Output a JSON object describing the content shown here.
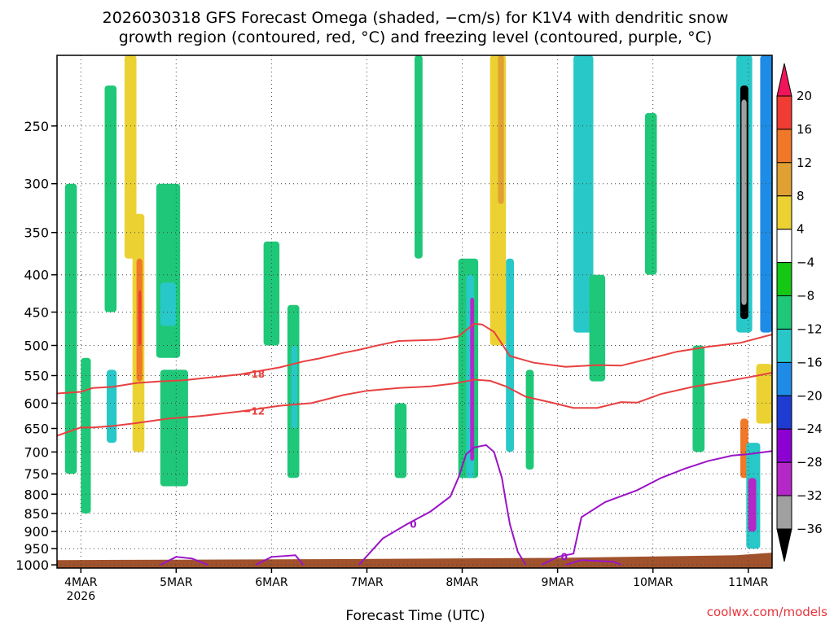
{
  "title": {
    "line1": "2026030318 GFS Forecast Omega (shaded, −cm/s) for K1V4 with dendritic snow",
    "line2": "growth region (contoured, red, °C) and freezing level (contoured, purple, °C)"
  },
  "xlabel": "Forecast Time (UTC)",
  "credit": "coolwx.com/models",
  "chart_data": {
    "type": "heatmap",
    "y_scale": "pressure (inverted, log-like)",
    "y_ticks": [
      "250",
      "300",
      "350",
      "400",
      "450",
      "500",
      "550",
      "600",
      "650",
      "700",
      "750",
      "800",
      "850",
      "900",
      "950",
      "1000"
    ],
    "y_range_hpa": [
      200,
      1010
    ],
    "x_ticks": [
      {
        "label": "4MAR",
        "sub": "2026",
        "hours": 0
      },
      {
        "label": "5MAR",
        "sub": "",
        "hours": 24
      },
      {
        "label": "6MAR",
        "sub": "",
        "hours": 48
      },
      {
        "label": "7MAR",
        "sub": "",
        "hours": 72
      },
      {
        "label": "8MAR",
        "sub": "",
        "hours": 96
      },
      {
        "label": "9MAR",
        "sub": "",
        "hours": 120
      },
      {
        "label": "10MAR",
        "sub": "",
        "hours": 144
      },
      {
        "label": "11MAR",
        "sub": "",
        "hours": 168
      }
    ],
    "x_range_hours": [
      -6,
      174
    ],
    "grid": true,
    "colorbar": {
      "levels": [
        "20",
        "16",
        "12",
        "8",
        "4",
        "−4",
        "−8",
        "−12",
        "−16",
        "−20",
        "−24",
        "−28",
        "−32",
        "−36"
      ],
      "colors": [
        "#f0145a",
        "#f03c32",
        "#f07828",
        "#e1a032",
        "#ebd232",
        "#ffffff",
        "#14c814",
        "#1ec878",
        "#28c8c8",
        "#1e8ce6",
        "#1e3cd2",
        "#8c00d2",
        "#b428c8",
        "#a0a0a0",
        "#000000"
      ]
    },
    "contours": [
      {
        "name": "-18",
        "color": "#e84040",
        "label": "−18",
        "points": [
          [
            -6,
            582
          ],
          [
            0,
            579
          ],
          [
            3,
            572
          ],
          [
            8,
            570
          ],
          [
            14,
            563
          ],
          [
            20,
            560
          ],
          [
            26,
            558
          ],
          [
            30,
            555
          ],
          [
            40,
            548
          ],
          [
            50,
            536
          ],
          [
            56,
            526
          ],
          [
            60,
            521
          ],
          [
            66,
            512
          ],
          [
            70,
            507
          ],
          [
            74,
            501
          ],
          [
            80,
            493
          ],
          [
            85,
            492
          ],
          [
            90,
            491
          ],
          [
            95,
            486
          ],
          [
            99,
            467
          ],
          [
            101,
            468
          ],
          [
            104,
            479
          ],
          [
            108,
            517
          ],
          [
            114,
            528
          ],
          [
            122,
            535
          ],
          [
            130,
            532
          ],
          [
            136,
            533
          ],
          [
            144,
            520
          ],
          [
            150,
            510
          ],
          [
            158,
            502
          ],
          [
            166,
            496
          ],
          [
            174,
            483
          ]
        ]
      },
      {
        "name": "-12",
        "color": "#e84040",
        "label": "−12",
        "points": [
          [
            -6,
            665
          ],
          [
            0,
            648
          ],
          [
            3,
            648
          ],
          [
            8,
            645
          ],
          [
            14,
            639
          ],
          [
            22,
            630
          ],
          [
            30,
            625
          ],
          [
            40,
            616
          ],
          [
            50,
            605
          ],
          [
            58,
            600
          ],
          [
            66,
            585
          ],
          [
            72,
            577
          ],
          [
            80,
            572
          ],
          [
            88,
            569
          ],
          [
            94,
            564
          ],
          [
            99,
            557
          ],
          [
            103,
            559
          ],
          [
            107,
            569
          ],
          [
            112,
            588
          ],
          [
            118,
            598
          ],
          [
            124,
            609
          ],
          [
            130,
            609
          ],
          [
            136,
            598
          ],
          [
            140,
            599
          ],
          [
            146,
            583
          ],
          [
            154,
            570
          ],
          [
            160,
            563
          ],
          [
            168,
            553
          ],
          [
            174,
            545
          ]
        ]
      }
    ],
    "freezing_level": [
      {
        "name": "0C-a",
        "color": "#9a14c8",
        "label": "0",
        "points": [
          [
            70,
            1000
          ],
          [
            76,
            920
          ],
          [
            82,
            880
          ],
          [
            88,
            845
          ],
          [
            93,
            806
          ],
          [
            95,
            760
          ],
          [
            97,
            705
          ],
          [
            99,
            690
          ],
          [
            102,
            685
          ],
          [
            104,
            700
          ],
          [
            106,
            760
          ],
          [
            107,
            820
          ],
          [
            108,
            880
          ],
          [
            110,
            960
          ],
          [
            112,
            1000
          ]
        ]
      },
      {
        "name": "0C-b",
        "color": "#9a14c8",
        "label": "0",
        "points": [
          [
            116,
            1000
          ],
          [
            120,
            975
          ],
          [
            124,
            965
          ],
          [
            126,
            860
          ],
          [
            132,
            820
          ],
          [
            140,
            790
          ],
          [
            146,
            760
          ],
          [
            152,
            738
          ],
          [
            158,
            720
          ],
          [
            164,
            708
          ],
          [
            168,
            705
          ],
          [
            174,
            698
          ]
        ]
      },
      {
        "name": "0C-c",
        "color": "#9a14c8",
        "label": "",
        "points": [
          [
            20,
            1000
          ],
          [
            24,
            975
          ],
          [
            28,
            980
          ],
          [
            32,
            1000
          ]
        ]
      },
      {
        "name": "0C-d",
        "color": "#9a14c8",
        "label": "",
        "points": [
          [
            44,
            1000
          ],
          [
            48,
            975
          ],
          [
            54,
            970
          ],
          [
            56,
            1000
          ]
        ]
      },
      {
        "name": "0C-e",
        "color": "#9a14c8",
        "label": "",
        "points": [
          [
            122,
            1000
          ],
          [
            126,
            985
          ],
          [
            134,
            990
          ],
          [
            136,
            1000
          ]
        ]
      }
    ],
    "omega_patches": [
      {
        "h0": -4,
        "h1": -1,
        "p0": 300,
        "p1": 750,
        "level": "-8"
      },
      {
        "h0": 0,
        "h1": 2.5,
        "p0": 520,
        "p1": 850,
        "level": "-8"
      },
      {
        "h0": 6,
        "h1": 9,
        "p0": 220,
        "p1": 450,
        "level": "-8"
      },
      {
        "h0": 7,
        "h1": 8.5,
        "p0": 560,
        "p1": 640,
        "level": "-16"
      },
      {
        "h0": 6.5,
        "h1": 9,
        "p0": 540,
        "p1": 680,
        "level": "-12"
      },
      {
        "h0": 11,
        "h1": 14,
        "p0": 200,
        "p1": 380,
        "level": "8"
      },
      {
        "h0": 13,
        "h1": 16,
        "p0": 330,
        "p1": 700,
        "level": "8"
      },
      {
        "h0": 14,
        "h1": 15.5,
        "p0": 380,
        "p1": 560,
        "level": "16"
      },
      {
        "h0": 14.5,
        "h1": 15.2,
        "p0": 420,
        "p1": 500,
        "level": "20"
      },
      {
        "h0": 19,
        "h1": 25,
        "p0": 300,
        "p1": 520,
        "level": "-8"
      },
      {
        "h0": 20,
        "h1": 24,
        "p0": 410,
        "p1": 470,
        "level": "-12"
      },
      {
        "h0": 20,
        "h1": 27,
        "p0": 540,
        "p1": 780,
        "level": "-8"
      },
      {
        "h0": 32,
        "h1": 34,
        "p0": 350,
        "p1": 700,
        "level": "4"
      },
      {
        "h0": 28,
        "h1": 30,
        "p0": 200,
        "p1": 330,
        "level": "4"
      },
      {
        "h0": 46,
        "h1": 50,
        "p0": 360,
        "p1": 500,
        "level": "-8"
      },
      {
        "h0": 52,
        "h1": 55,
        "p0": 440,
        "p1": 760,
        "level": "-8"
      },
      {
        "h0": 53,
        "h1": 54.5,
        "p0": 500,
        "p1": 650,
        "level": "-12"
      },
      {
        "h0": 61,
        "h1": 63,
        "p0": 200,
        "p1": 460,
        "level": "4"
      },
      {
        "h0": 70,
        "h1": 73,
        "p0": 480,
        "p1": 580,
        "level": "4"
      },
      {
        "h0": 79,
        "h1": 82,
        "p0": 600,
        "p1": 760,
        "level": "-8"
      },
      {
        "h0": 84,
        "h1": 86,
        "p0": 200,
        "p1": 380,
        "level": "-8"
      },
      {
        "h0": 90,
        "h1": 94,
        "p0": 250,
        "p1": 500,
        "level": "4"
      },
      {
        "h0": 95,
        "h1": 100,
        "p0": 380,
        "p1": 760,
        "level": "-8"
      },
      {
        "h0": 97,
        "h1": 99,
        "p0": 400,
        "p1": 760,
        "level": "-12"
      },
      {
        "h0": 98,
        "h1": 99,
        "p0": 430,
        "p1": 720,
        "level": "-28"
      },
      {
        "h0": 103,
        "h1": 107,
        "p0": 200,
        "p1": 500,
        "level": "8"
      },
      {
        "h0": 105,
        "h1": 106.5,
        "p0": 200,
        "p1": 320,
        "level": "12"
      },
      {
        "h0": 107,
        "h1": 109,
        "p0": 380,
        "p1": 700,
        "level": "-12"
      },
      {
        "h0": 112,
        "h1": 114,
        "p0": 540,
        "p1": 740,
        "level": "-8"
      },
      {
        "h0": 119,
        "h1": 122,
        "p0": 380,
        "p1": 650,
        "level": "4"
      },
      {
        "h0": 124,
        "h1": 129,
        "p0": 200,
        "p1": 480,
        "level": "-12"
      },
      {
        "h0": 128,
        "h1": 132,
        "p0": 400,
        "p1": 560,
        "level": "-8"
      },
      {
        "h0": 137,
        "h1": 140,
        "p0": 270,
        "p1": 420,
        "level": "4"
      },
      {
        "h0": 142,
        "h1": 145,
        "p0": 240,
        "p1": 400,
        "level": "-8"
      },
      {
        "h0": 145,
        "h1": 148,
        "p0": 580,
        "p1": 850,
        "level": "4"
      },
      {
        "h0": 150,
        "h1": 156,
        "p0": 200,
        "p1": 420,
        "level": "4"
      },
      {
        "h0": 154,
        "h1": 157,
        "p0": 500,
        "p1": 700,
        "level": "-8"
      },
      {
        "h0": 160,
        "h1": 164,
        "p0": 480,
        "p1": 620,
        "level": "4"
      },
      {
        "h0": 165,
        "h1": 169,
        "p0": 200,
        "p1": 480,
        "level": "-12"
      },
      {
        "h0": 166,
        "h1": 168,
        "p0": 220,
        "p1": 460,
        "level": "-36"
      },
      {
        "h0": 166.3,
        "h1": 167.6,
        "p0": 230,
        "p1": 440,
        "level": "-32"
      },
      {
        "h0": 166,
        "h1": 168,
        "p0": 630,
        "p1": 760,
        "level": "16"
      },
      {
        "h0": 167.5,
        "h1": 171,
        "p0": 680,
        "p1": 950,
        "level": "-12"
      },
      {
        "h0": 168,
        "h1": 170,
        "p0": 760,
        "p1": 900,
        "level": "-28"
      },
      {
        "h0": 171,
        "h1": 174,
        "p0": 200,
        "p1": 480,
        "level": "-16"
      },
      {
        "h0": 170,
        "h1": 174,
        "p0": 530,
        "p1": 640,
        "level": "8"
      }
    ]
  }
}
